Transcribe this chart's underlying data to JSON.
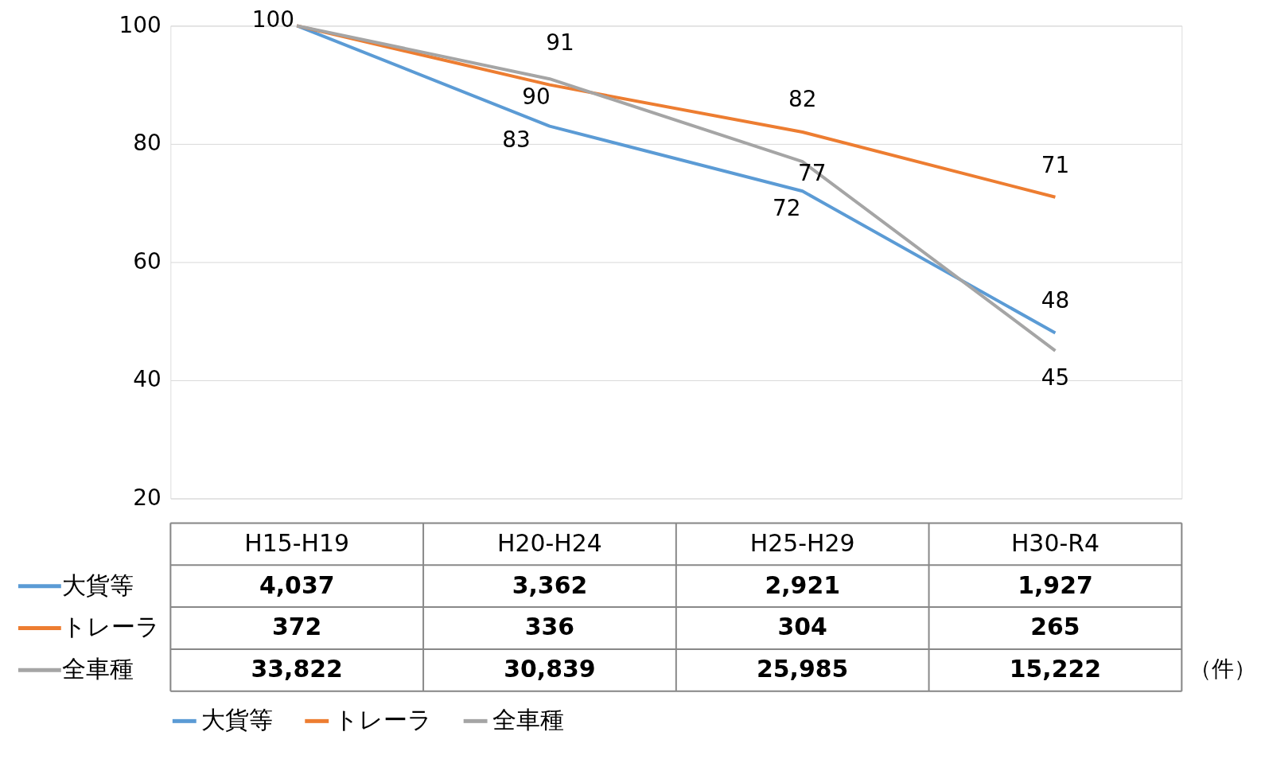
{
  "chart_data": [
    {
      "type": "line",
      "categories": [
        null,
        null,
        null,
        null
      ],
      "series": [
        {
          "name": "大貨等",
          "color": "#5b9bd5",
          "values": [
            100,
            83,
            72,
            48
          ],
          "value_labels": [
            "100",
            "83",
            "72",
            "48"
          ]
        },
        {
          "name": "トレーラ",
          "color": "#ed7d31",
          "values": [
            100,
            90,
            82,
            71
          ],
          "value_labels": [
            null,
            "90",
            "82",
            "71"
          ]
        },
        {
          "name": "全車種",
          "color": "#a5a5a5",
          "values": [
            100,
            91,
            77,
            45
          ],
          "value_labels": [
            null,
            "91",
            "77",
            "45"
          ]
        }
      ],
      "ylim": [
        20,
        100
      ],
      "yticks": [
        20,
        40,
        60,
        80,
        100
      ],
      "grid": "y",
      "legend": "bottom",
      "tick_labels": "y",
      "marker": "none",
      "line_style": "solid"
    },
    {
      "type": "other",
      "categories": [
        "H15-H19",
        "H20-H24",
        "H25-H29",
        "H30-R4"
      ],
      "series": [
        {
          "name": "大貨等",
          "color": "#5b9bd5",
          "values": [
            4037,
            3362,
            2921,
            1927
          ],
          "value_labels": [
            "4,037",
            "3,362",
            "2,921",
            "1,927"
          ]
        },
        {
          "name": "トレーラ",
          "color": "#ed7d31",
          "values": [
            372,
            336,
            304,
            265
          ],
          "value_labels": [
            "372",
            "336",
            "304",
            "265"
          ]
        },
        {
          "name": "全車種",
          "color": "#a5a5a5",
          "values": [
            33822,
            30839,
            25985,
            15222
          ],
          "value_labels": [
            "33,822",
            "30,839",
            "25,985",
            "15,222"
          ]
        }
      ],
      "annotations": [
        "（件）"
      ]
    }
  ]
}
